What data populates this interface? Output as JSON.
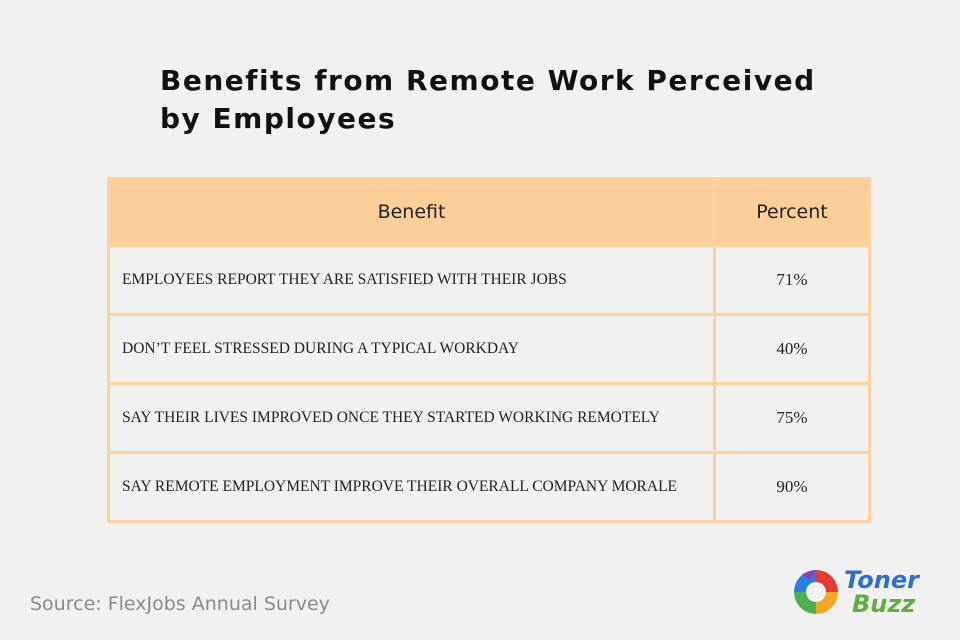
{
  "header": {
    "title": "Benefits from Remote Work Perceived by Employees"
  },
  "table": {
    "columns": [
      "Benefit",
      "Percent"
    ],
    "rows": [
      [
        "EMPLOYEES REPORT THEY ARE SATISFIED WITH THEIR JOBS",
        "71%"
      ],
      [
        "DON’T FEEL STRESSED DURING A TYPICAL WORKDAY",
        "40%"
      ],
      [
        "SAY THEIR LIVES IMPROVED ONCE THEY STARTED WORKING REMOTELY",
        "75%"
      ],
      [
        "SAY REMOTE EMPLOYMENT IMPROVE THEIR OVERALL COMPANY MORALE",
        "90%"
      ]
    ]
  },
  "footer": {
    "source": "Source: FlexJobs Annual Survey",
    "logo": [
      "Toner",
      "Buzz"
    ]
  }
}
